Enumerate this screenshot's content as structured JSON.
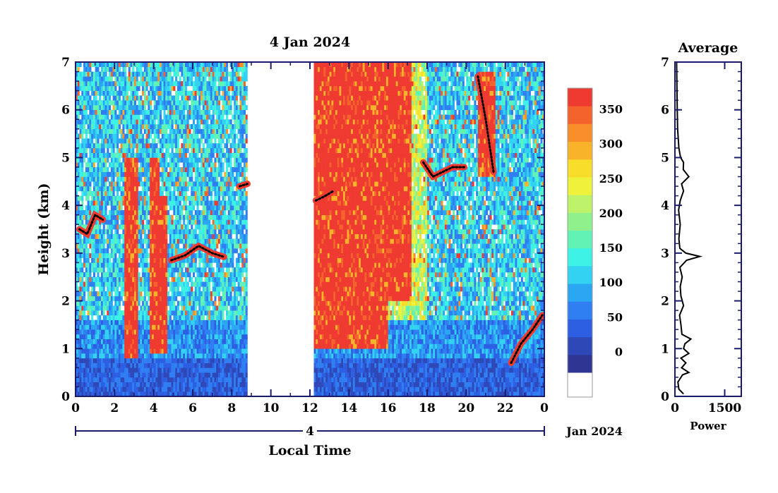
{
  "chart_data": [
    {
      "type": "heatmap",
      "title": "4 Jan 2024",
      "xlabel": "Local Time",
      "ylabel": "Height (km)",
      "x_ticks": [
        "0",
        "2",
        "4",
        "6",
        "8",
        "10",
        "12",
        "14",
        "16",
        "18",
        "20",
        "22",
        "0"
      ],
      "x_range": [
        0,
        24
      ],
      "y_ticks": [
        "0",
        "1",
        "2",
        "3",
        "4",
        "5",
        "6",
        "7"
      ],
      "y_range": [
        0,
        7
      ],
      "date_day_label": "4",
      "date_month_label": "Jan 2024",
      "data_gap_hours": [
        8.8,
        12.2
      ],
      "colorbar": {
        "ticks": [
          "0",
          "50",
          "100",
          "150",
          "200",
          "250",
          "300",
          "350"
        ],
        "range": [
          -30,
          380
        ],
        "no_data_color": "#ffffff",
        "colors": [
          "#2e3592",
          "#2f48b8",
          "#2d5fe3",
          "#2f7ef2",
          "#2aa6f2",
          "#33d2f2",
          "#3df2e5",
          "#63f2b6",
          "#90f08c",
          "#bff26b",
          "#eef23a",
          "#f8dd2a",
          "#f9b32a",
          "#f98e2b",
          "#f5632c",
          "#ee3a30"
        ]
      },
      "cloud_layers": [
        {
          "name": "layer-early-high",
          "points": [
            [
              0.2,
              3.5
            ],
            [
              0.6,
              3.4
            ],
            [
              1.0,
              3.8
            ],
            [
              1.4,
              3.7
            ]
          ]
        },
        {
          "name": "layer-morning",
          "points": [
            [
              4.9,
              2.85
            ],
            [
              5.6,
              2.95
            ],
            [
              6.3,
              3.15
            ],
            [
              7.0,
              3.0
            ],
            [
              7.6,
              2.92
            ]
          ]
        },
        {
          "name": "layer-0845",
          "points": [
            [
              8.4,
              4.4
            ],
            [
              8.8,
              4.45
            ]
          ]
        },
        {
          "name": "layer-noon",
          "points": [
            [
              12.3,
              4.1
            ],
            [
              12.8,
              4.2
            ],
            [
              13.2,
              4.3
            ]
          ]
        },
        {
          "name": "layer-evening",
          "points": [
            [
              17.8,
              4.9
            ],
            [
              18.3,
              4.6
            ],
            [
              18.8,
              4.7
            ],
            [
              19.3,
              4.8
            ],
            [
              19.9,
              4.8
            ]
          ]
        },
        {
          "name": "layer-falling",
          "points": [
            [
              20.6,
              6.7
            ],
            [
              21.0,
              5.8
            ],
            [
              21.4,
              4.7
            ]
          ]
        },
        {
          "name": "layer-rising",
          "points": [
            [
              22.3,
              0.7
            ],
            [
              22.8,
              1.1
            ],
            [
              23.4,
              1.4
            ],
            [
              23.9,
              1.7
            ]
          ]
        }
      ],
      "high_echo_bands": [
        {
          "t0": 2.5,
          "t1": 3.2,
          "h0": 0.8,
          "h1": 5.0
        },
        {
          "t0": 3.8,
          "t1": 4.3,
          "h0": 0.9,
          "h1": 5.0
        },
        {
          "t0": 4.35,
          "t1": 4.7,
          "h0": 0.9,
          "h1": 4.2
        },
        {
          "t0": 12.2,
          "t1": 16.0,
          "h0": 1.0,
          "h1": 7.0
        },
        {
          "t0": 16.0,
          "t1": 17.2,
          "h0": 2.0,
          "h1": 7.0
        },
        {
          "t0": 20.6,
          "t1": 21.5,
          "h0": 4.6,
          "h1": 6.8
        }
      ]
    },
    {
      "type": "line",
      "title": "Average",
      "xlabel": "Power",
      "ylabel": "",
      "x_ticks": [
        "0",
        "1500"
      ],
      "x_range": [
        0,
        2000
      ],
      "y_ticks": [
        "0",
        "1",
        "2",
        "3",
        "4",
        "5",
        "6",
        "7"
      ],
      "y_range": [
        0,
        7
      ],
      "series": [
        {
          "values": [
            [
              260,
              0.05
            ],
            [
              120,
              0.15
            ],
            [
              90,
              0.3
            ],
            [
              230,
              0.45
            ],
            [
              420,
              0.5
            ],
            [
              200,
              0.6
            ],
            [
              330,
              0.7
            ],
            [
              180,
              0.8
            ],
            [
              420,
              0.9
            ],
            [
              260,
              1.0
            ],
            [
              300,
              1.1
            ],
            [
              480,
              1.2
            ],
            [
              210,
              1.3
            ],
            [
              180,
              1.5
            ],
            [
              140,
              1.7
            ],
            [
              260,
              1.9
            ],
            [
              180,
              2.1
            ],
            [
              160,
              2.3
            ],
            [
              220,
              2.5
            ],
            [
              150,
              2.7
            ],
            [
              350,
              2.85
            ],
            [
              750,
              2.93
            ],
            [
              330,
              3.0
            ],
            [
              150,
              3.1
            ],
            [
              120,
              3.3
            ],
            [
              160,
              3.6
            ],
            [
              110,
              3.9
            ],
            [
              160,
              4.1
            ],
            [
              260,
              4.3
            ],
            [
              200,
              4.45
            ],
            [
              420,
              4.6
            ],
            [
              250,
              4.75
            ],
            [
              260,
              4.9
            ],
            [
              170,
              5.0
            ],
            [
              120,
              5.2
            ],
            [
              80,
              5.6
            ],
            [
              70,
              6.0
            ],
            [
              60,
              6.5
            ],
            [
              50,
              7.0
            ]
          ]
        }
      ]
    }
  ]
}
